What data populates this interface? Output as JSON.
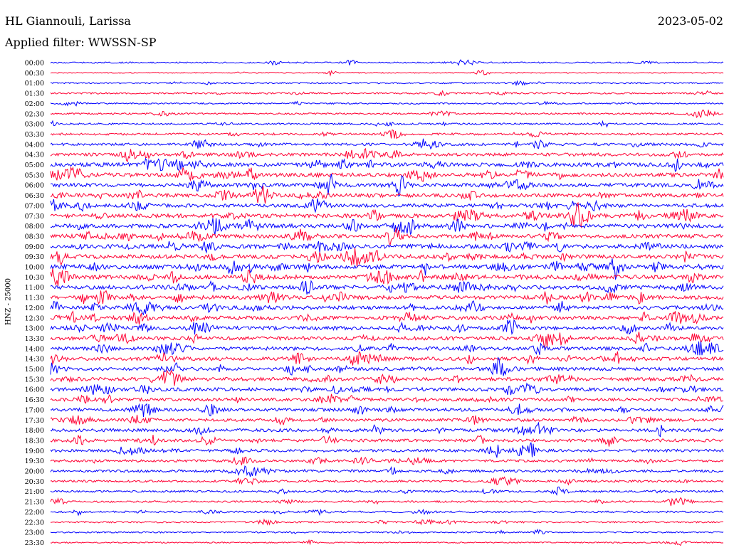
{
  "header": {
    "station": "HL Giannouli, Larissa",
    "date": "2023-05-02",
    "filter": "Applied filter: WWSSN-SP"
  },
  "chart_data": {
    "type": "line",
    "title": "HL Giannouli, Larissa",
    "date": "2023-05-02",
    "filter_text": "Applied filter: WWSSN-SP",
    "ylabel": "HNZ - 25000",
    "xlabel": "",
    "grid": false,
    "trace_colors": [
      "#0000ff",
      "#ff0033"
    ],
    "rows": [
      {
        "time": "00:00",
        "activity": 0.15
      },
      {
        "time": "00:30",
        "activity": 0.05
      },
      {
        "time": "01:00",
        "activity": 0.15
      },
      {
        "time": "01:30",
        "activity": 0.2
      },
      {
        "time": "02:00",
        "activity": 0.15
      },
      {
        "time": "02:30",
        "activity": 0.2
      },
      {
        "time": "03:00",
        "activity": 0.25
      },
      {
        "time": "03:30",
        "activity": 0.35
      },
      {
        "time": "04:00",
        "activity": 0.45
      },
      {
        "time": "04:30",
        "activity": 0.6
      },
      {
        "time": "05:00",
        "activity": 0.8
      },
      {
        "time": "05:30",
        "activity": 0.8
      },
      {
        "time": "06:00",
        "activity": 0.75
      },
      {
        "time": "06:30",
        "activity": 0.75
      },
      {
        "time": "07:00",
        "activity": 0.7
      },
      {
        "time": "07:30",
        "activity": 0.8
      },
      {
        "time": "08:00",
        "activity": 0.8
      },
      {
        "time": "08:30",
        "activity": 0.8
      },
      {
        "time": "09:00",
        "activity": 0.85
      },
      {
        "time": "09:30",
        "activity": 0.85
      },
      {
        "time": "10:00",
        "activity": 0.9
      },
      {
        "time": "10:30",
        "activity": 0.85
      },
      {
        "time": "11:00",
        "activity": 0.85
      },
      {
        "time": "11:30",
        "activity": 0.8
      },
      {
        "time": "12:00",
        "activity": 0.75
      },
      {
        "time": "12:30",
        "activity": 0.8
      },
      {
        "time": "13:00",
        "activity": 0.75
      },
      {
        "time": "13:30",
        "activity": 0.7
      },
      {
        "time": "14:00",
        "activity": 0.7
      },
      {
        "time": "14:30",
        "activity": 0.7
      },
      {
        "time": "15:00",
        "activity": 0.65
      },
      {
        "time": "15:30",
        "activity": 0.7
      },
      {
        "time": "16:00",
        "activity": 0.7
      },
      {
        "time": "16:30",
        "activity": 0.6
      },
      {
        "time": "17:00",
        "activity": 0.6
      },
      {
        "time": "17:30",
        "activity": 0.55
      },
      {
        "time": "18:00",
        "activity": 0.6
      },
      {
        "time": "18:30",
        "activity": 0.55
      },
      {
        "time": "19:00",
        "activity": 0.5
      },
      {
        "time": "19:30",
        "activity": 0.45
      },
      {
        "time": "20:00",
        "activity": 0.45
      },
      {
        "time": "20:30",
        "activity": 0.35
      },
      {
        "time": "21:00",
        "activity": 0.3
      },
      {
        "time": "21:30",
        "activity": 0.25
      },
      {
        "time": "22:00",
        "activity": 0.25
      },
      {
        "time": "22:30",
        "activity": 0.2
      },
      {
        "time": "23:00",
        "activity": 0.15
      },
      {
        "time": "23:30",
        "activity": 0.1
      }
    ]
  }
}
